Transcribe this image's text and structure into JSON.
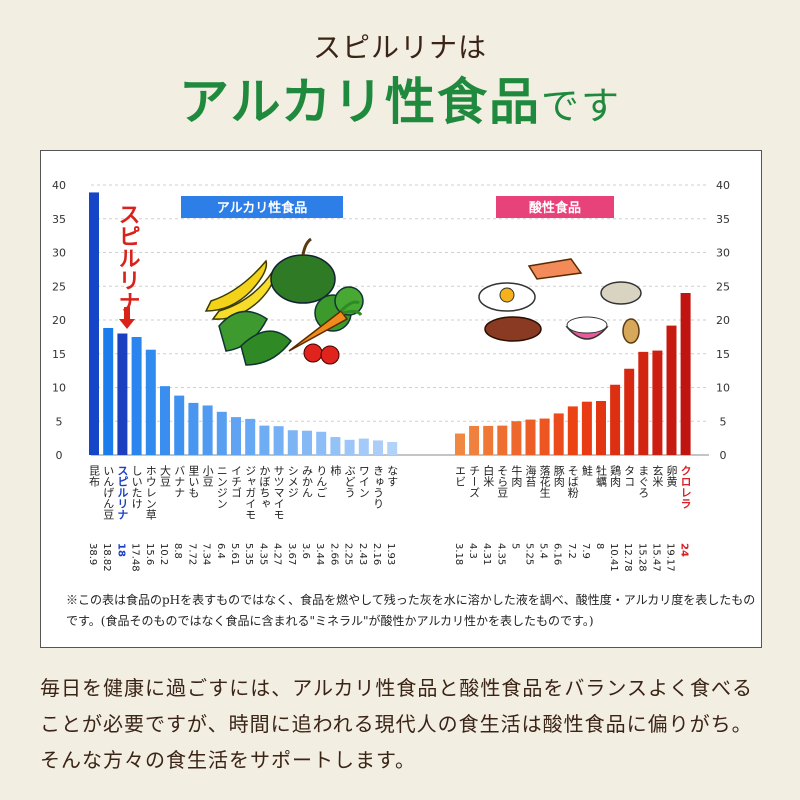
{
  "header": {
    "subtitle": "スピルリナは",
    "title_main": "アルカリ性食品",
    "title_tail": "です"
  },
  "chart_data": {
    "type": "bar",
    "ylim": [
      0,
      40
    ],
    "yticks": [
      "0",
      "5",
      "10",
      "15",
      "20",
      "25",
      "30",
      "35",
      "40"
    ],
    "grid": true,
    "series": [
      {
        "name": "アルカリ性食品",
        "color": "#2b6fe0",
        "categories": [
          "昆布",
          "いんげん豆",
          "スピルリナ",
          "しいたけ",
          "ホウレン草",
          "大豆",
          "バナナ",
          "里いも",
          "小豆",
          "ニンジン",
          "イチゴ",
          "ジャガイモ",
          "かぼちゃ",
          "サツマイモ",
          "シメジ",
          "みかん",
          "りんご",
          "柿",
          "ぶどう",
          "ワイン",
          "きゅうり",
          "なす"
        ],
        "values": [
          38.9,
          18.82,
          18,
          17.48,
          15.6,
          10.2,
          8.8,
          7.72,
          7.34,
          6.4,
          5.61,
          5.35,
          4.35,
          4.27,
          3.67,
          3.6,
          3.44,
          2.66,
          2.25,
          2.43,
          2.16,
          1.93
        ],
        "value_labels": [
          "38.9",
          "18.82",
          "18",
          "17.48",
          "15.6",
          "10.2",
          "8.8",
          "7.72",
          "7.34",
          "6.4",
          "5.61",
          "5.35",
          "4.35",
          "4.27",
          "3.67",
          "3.6",
          "3.44",
          "2.66",
          "2.25",
          "2.43",
          "2.16",
          "1.93"
        ]
      },
      {
        "name": "酸性食品",
        "color": "#e8352e",
        "categories": [
          "エビ",
          "チーズ",
          "白米",
          "そら豆",
          "牛肉",
          "海苔",
          "落花生",
          "豚肉",
          "そば粉",
          "鮭",
          "牡蠣",
          "鶏肉",
          "タコ",
          "まぐろ",
          "玄米",
          "卵黄",
          "クロレラ"
        ],
        "values": [
          3.18,
          4.3,
          4.31,
          4.35,
          5,
          5.25,
          5.4,
          6.16,
          7.2,
          7.9,
          8,
          10.41,
          12.78,
          15.28,
          15.47,
          19.17,
          24
        ],
        "value_labels": [
          "3.18",
          "4.3",
          "4.31",
          "4.35",
          "5",
          "5.25",
          "5.4",
          "6.16",
          "7.2",
          "7.9",
          "8",
          "10.41",
          "12.78",
          "15.28",
          "15.47",
          "19.17",
          "24"
        ]
      }
    ],
    "callout": "スピルリナ"
  },
  "note": "※この表は食品のpHを表すものではなく、食品を燃やして残った灰を水に溶かした液を調べ、酸性度・アルカリ度を表したものです。(食品そのものではなく食品に含まれる\"ミネラル\"が酸性かアルカリ性かを表したものです。)",
  "body_text": "毎日を健康に過ごすには、アルカリ性食品と酸性食品をバランスよく食べることが必要ですが、時間に追われる現代人の食生活は酸性食品に偏りがち。そんな方々の食生活をサポートします。"
}
